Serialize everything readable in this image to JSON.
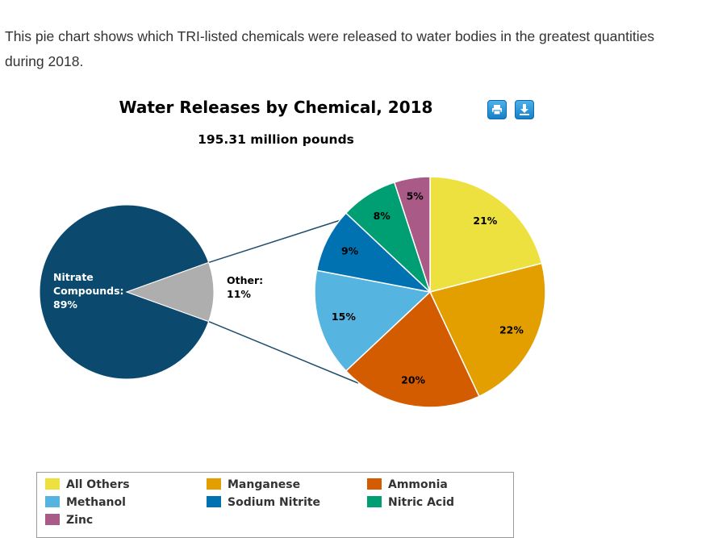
{
  "intro_text": "This pie chart shows which TRI-listed chemicals were released to water bodies in the greatest quantities during 2018.",
  "toolbar": {
    "print_icon": "print-icon",
    "download_icon": "download-icon"
  },
  "chart_data": {
    "type": "pie",
    "title": "Water Releases by Chemical, 2018",
    "subtitle": "195.31 million pounds",
    "main_pie": {
      "slices": [
        {
          "label_lines": [
            "Nitrate",
            "Compounds:",
            "89%"
          ],
          "value": 89,
          "color": "#0b4a6e"
        },
        {
          "label_lines": [
            "Other:",
            "11%"
          ],
          "value": 11,
          "color": "#aeaeae"
        }
      ]
    },
    "breakdown_pie": {
      "slices": [
        {
          "name": "All Others",
          "value": 21,
          "label": "21%",
          "color": "#ede13f"
        },
        {
          "name": "Manganese",
          "value": 22,
          "label": "22%",
          "color": "#e39f00"
        },
        {
          "name": "Ammonia",
          "value": 20,
          "label": "20%",
          "color": "#d45c00"
        },
        {
          "name": "Methanol",
          "value": 15,
          "label": "15%",
          "color": "#56b4e0"
        },
        {
          "name": "Sodium Nitrite",
          "value": 9,
          "label": "9%",
          "color": "#0072b2"
        },
        {
          "name": "Nitric Acid",
          "value": 8,
          "label": "8%",
          "color": "#009e73"
        },
        {
          "name": "Zinc",
          "value": 5,
          "label": "5%",
          "color": "#aa5a86"
        }
      ]
    },
    "legend": {
      "placement": "bottom",
      "items": [
        {
          "name": "All Others",
          "color": "#ede13f"
        },
        {
          "name": "Manganese",
          "color": "#e39f00"
        },
        {
          "name": "Ammonia",
          "color": "#d45c00"
        },
        {
          "name": "Methanol",
          "color": "#56b4e0"
        },
        {
          "name": "Sodium Nitrite",
          "color": "#0072b2"
        },
        {
          "name": "Nitric Acid",
          "color": "#009e73"
        },
        {
          "name": "Zinc",
          "color": "#aa5a86"
        }
      ]
    }
  }
}
